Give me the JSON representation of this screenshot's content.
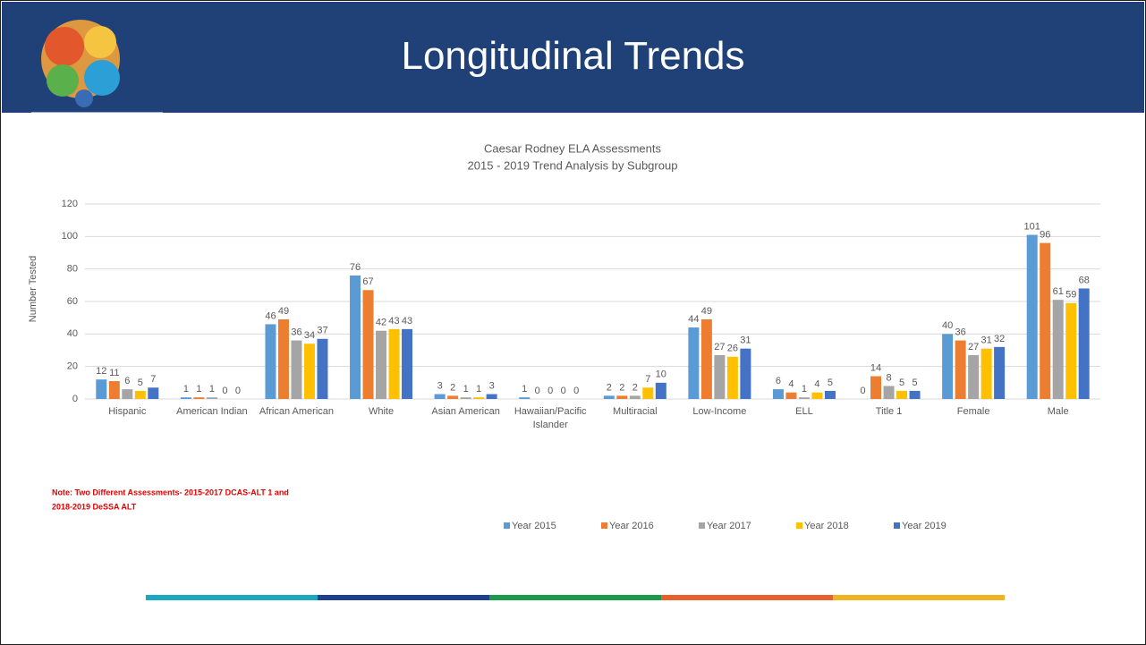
{
  "header": {
    "title": "Longitudinal Trends"
  },
  "chart_data": {
    "type": "bar",
    "title": [
      "Caesar Rodney ELA  Assessments",
      "2015 - 2019 Trend Analysis by Subgroup"
    ],
    "y_label": "Number Tested",
    "categories": [
      "Hispanic",
      "American Indian",
      "African American",
      "White",
      "Asian American",
      "Hawaiian/Pacific Islander",
      "Multiracial",
      "Low-Income",
      "ELL",
      "Title 1",
      "Female",
      "Male"
    ],
    "series": [
      {
        "name": "Year 2015",
        "color": "#5b9bd5",
        "values": [
          12,
          1,
          46,
          76,
          3,
          1,
          2,
          44,
          6,
          0,
          40,
          101
        ]
      },
      {
        "name": "Year 2016",
        "color": "#ed7d31",
        "values": [
          11,
          1,
          49,
          67,
          2,
          0,
          2,
          49,
          4,
          14,
          36,
          96
        ]
      },
      {
        "name": "Year 2017",
        "color": "#a5a5a5",
        "values": [
          6,
          1,
          36,
          42,
          1,
          0,
          2,
          27,
          1,
          8,
          27,
          61
        ]
      },
      {
        "name": "Year 2018",
        "color": "#ffc000",
        "values": [
          5,
          0,
          34,
          43,
          1,
          0,
          7,
          26,
          4,
          5,
          31,
          59
        ]
      },
      {
        "name": "Year 2019",
        "color": "#4472c4",
        "values": [
          7,
          0,
          37,
          43,
          3,
          0,
          10,
          31,
          5,
          5,
          32,
          68
        ]
      }
    ],
    "ylim": [
      0,
      120
    ],
    "yticks": [
      0,
      20,
      40,
      60,
      80,
      100,
      120
    ],
    "grid": true,
    "note": [
      "Note: Two Different Assessments- 2015-2017 DCAS-ALT 1 and",
      "2018-2019 DeSSA ALT"
    ]
  }
}
